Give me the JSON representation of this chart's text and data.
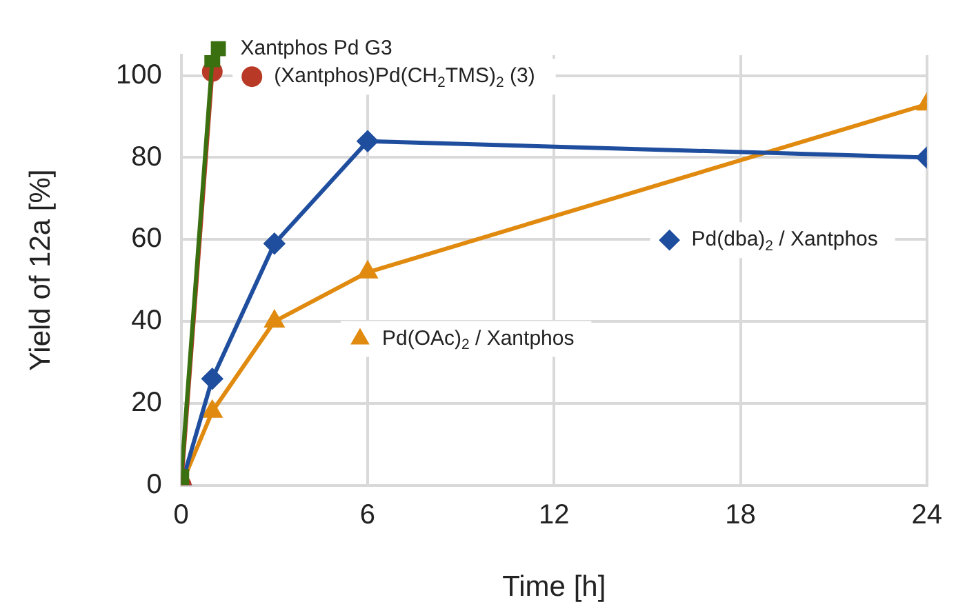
{
  "chart_data": {
    "type": "line",
    "xlabel": "Time [h]",
    "ylabel": "Yield of 12a [%]",
    "xlim": [
      0,
      24
    ],
    "xticks": [
      0,
      6,
      12,
      18,
      24
    ],
    "ylim": [
      0,
      105
    ],
    "yticks": [
      0,
      20,
      40,
      60,
      80,
      100
    ],
    "grid": true,
    "legend": "top left",
    "series": [
      {
        "name": "Xantphos Pd G3",
        "color": "#3a7010",
        "marker": "square",
        "x": [
          0,
          1
        ],
        "values": [
          2,
          104
        ]
      },
      {
        "name": "(Xantphos)Pd(CH$_{2}$TMS)$_{2}$ (3)",
        "color": "#b83a26",
        "marker": "circle",
        "x": [
          0,
          1
        ],
        "values": [
          0,
          101
        ]
      },
      {
        "name": "Pd(dba)$_{2}$ / Xantphos",
        "color": "#1f4e9e",
        "marker": "diamond",
        "x": [
          0,
          1,
          3,
          6,
          24
        ],
        "values": [
          0,
          26,
          59,
          84,
          80
        ]
      },
      {
        "name": "Pd(OAc)$_{2}$ / Xantphos",
        "color": "#e08a10",
        "marker": "triangle",
        "x": [
          0,
          1,
          3,
          6,
          24
        ],
        "values": [
          0,
          18,
          40,
          52,
          93
        ]
      }
    ]
  }
}
